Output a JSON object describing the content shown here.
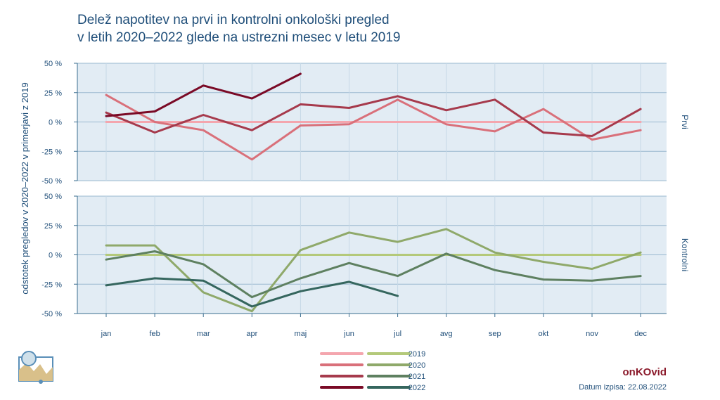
{
  "title_lines": [
    "Delež napotitev na prvi in kontrolni onkološki pregled",
    "v letih 2020–2022 glede na ustrezni mesec v letu 2019"
  ],
  "brand": "onKOvid",
  "date_label": "Datum izpisa:",
  "date_value": "22.08.2022",
  "chart_data": [
    {
      "type": "line",
      "panel_label": "Prvi",
      "ylabel": "odstotek pregledov v 2020–2022 v primerjavi z 2019",
      "categories": [
        "jan",
        "feb",
        "mar",
        "apr",
        "maj",
        "jun",
        "jul",
        "avg",
        "sep",
        "okt",
        "nov",
        "dec"
      ],
      "ylim": [
        -50,
        50
      ],
      "yticks": [
        -50,
        -25,
        0,
        25,
        50
      ],
      "ytick_labels": [
        "-50 %",
        "-25 %",
        "0 %",
        "25 %",
        "50 %"
      ],
      "grid": true,
      "series": [
        {
          "name": "2019",
          "color": "#f4a6ae",
          "values": [
            0,
            0,
            0,
            0,
            0,
            0,
            0,
            0,
            0,
            0,
            0,
            0
          ]
        },
        {
          "name": "2020",
          "color": "#d9707a",
          "values": [
            23,
            0,
            -7,
            -32,
            -3,
            -2,
            19,
            -2,
            -8,
            11,
            -15,
            -7
          ]
        },
        {
          "name": "2021",
          "color": "#a63a4c",
          "values": [
            8,
            -9,
            6,
            -7,
            15,
            12,
            22,
            10,
            19,
            -9,
            -12,
            11
          ]
        },
        {
          "name": "2022",
          "color": "#7a0a26",
          "values": [
            5,
            9,
            31,
            20,
            41,
            null,
            null,
            null,
            null,
            null,
            null,
            null
          ]
        }
      ]
    },
    {
      "type": "line",
      "panel_label": "Kontrolni",
      "categories": [
        "jan",
        "feb",
        "mar",
        "apr",
        "maj",
        "jun",
        "jul",
        "avg",
        "sep",
        "okt",
        "nov",
        "dec"
      ],
      "ylim": [
        -50,
        50
      ],
      "yticks": [
        -50,
        -25,
        0,
        25,
        50
      ],
      "ytick_labels": [
        "-50 %",
        "-25 %",
        "0 %",
        "25 %",
        "50 %"
      ],
      "grid": true,
      "series": [
        {
          "name": "2019",
          "color": "#b4c97a",
          "values": [
            0,
            0,
            0,
            0,
            0,
            0,
            0,
            0,
            0,
            0,
            0,
            0
          ]
        },
        {
          "name": "2020",
          "color": "#8fa96a",
          "values": [
            8,
            8,
            -32,
            -48,
            4,
            19,
            11,
            22,
            2,
            -6,
            -12,
            2
          ]
        },
        {
          "name": "2021",
          "color": "#5e8060",
          "values": [
            -4,
            3,
            -8,
            -36,
            -20,
            -7,
            -18,
            1,
            -13,
            -21,
            -22,
            -18
          ]
        },
        {
          "name": "2022",
          "color": "#35665e",
          "values": [
            -26,
            -20,
            -22,
            -44,
            -31,
            -23,
            -35,
            null,
            null,
            null,
            null,
            null
          ]
        }
      ]
    }
  ],
  "legend": {
    "placement": "bottom-center",
    "years": [
      "2019",
      "2020",
      "2021",
      "2022"
    ]
  }
}
